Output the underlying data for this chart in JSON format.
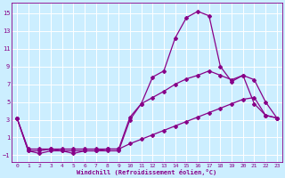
{
  "xlabel": "Windchill (Refroidissement éolien,°C)",
  "bg_color": "#cceeff",
  "line_color": "#880088",
  "grid_color": "#ffffff",
  "xlim": [
    -0.5,
    23.5
  ],
  "ylim": [
    -1.8,
    16.2
  ],
  "yticks": [
    -1,
    1,
    3,
    5,
    7,
    9,
    11,
    13,
    15
  ],
  "xticks": [
    0,
    1,
    2,
    3,
    4,
    5,
    6,
    7,
    8,
    9,
    10,
    11,
    12,
    13,
    14,
    15,
    16,
    17,
    18,
    19,
    20,
    21,
    22,
    23
  ],
  "line1_x": [
    0,
    1,
    2,
    3,
    4,
    5,
    6,
    7,
    8,
    9,
    10,
    11,
    12,
    13,
    14,
    15,
    16,
    17,
    18,
    19,
    20,
    21,
    22,
    23
  ],
  "line1_y": [
    3.2,
    -0.5,
    -0.8,
    -0.5,
    -0.5,
    -0.8,
    -0.5,
    -0.5,
    -0.5,
    -0.5,
    3.0,
    4.8,
    7.8,
    8.5,
    12.2,
    14.5,
    15.2,
    14.7,
    9.0,
    7.3,
    8.0,
    4.8,
    3.5,
    3.2
  ],
  "line2_x": [
    0,
    1,
    2,
    3,
    4,
    5,
    6,
    7,
    8,
    9,
    10,
    11,
    12,
    13,
    14,
    15,
    16,
    17,
    18,
    19,
    20,
    21,
    22,
    23
  ],
  "line2_y": [
    3.2,
    -0.5,
    -0.5,
    -0.3,
    -0.5,
    -0.5,
    -0.5,
    -0.5,
    -0.3,
    -0.3,
    3.3,
    4.8,
    5.5,
    6.2,
    7.0,
    7.6,
    8.0,
    8.5,
    8.0,
    7.5,
    8.0,
    7.5,
    5.0,
    3.2
  ],
  "line3_x": [
    0,
    1,
    2,
    3,
    4,
    5,
    6,
    7,
    8,
    9,
    10,
    11,
    12,
    13,
    14,
    15,
    16,
    17,
    18,
    19,
    20,
    21,
    22,
    23
  ],
  "line3_y": [
    3.2,
    -0.3,
    -0.3,
    -0.3,
    -0.3,
    -0.3,
    -0.3,
    -0.3,
    -0.3,
    -0.3,
    0.3,
    0.8,
    1.3,
    1.8,
    2.3,
    2.8,
    3.3,
    3.8,
    4.3,
    4.8,
    5.3,
    5.5,
    3.5,
    3.2
  ],
  "marker": "D",
  "markersize": 2.0,
  "linewidth": 0.9
}
